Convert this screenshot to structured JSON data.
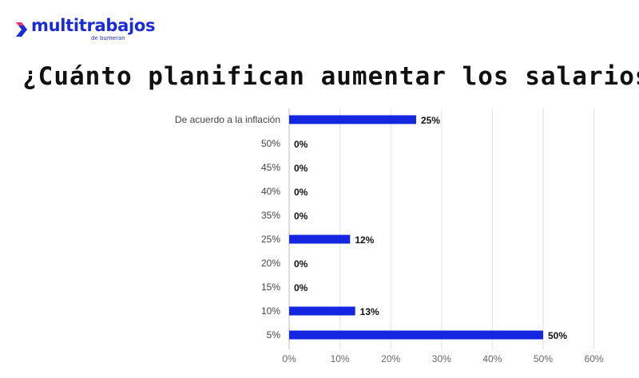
{
  "brand": {
    "name": "multitrabajos",
    "sub": "de bumeran",
    "color": "#1b2bd9"
  },
  "chart_data": {
    "type": "bar",
    "orientation": "horizontal",
    "title": "¿Cuánto planifican aumentar los salarios?",
    "categories": [
      "De acuerdo a la inflación",
      "50%",
      "45%",
      "40%",
      "35%",
      "25%",
      "20%",
      "15%",
      "10%",
      "5%"
    ],
    "values": [
      25,
      0,
      0,
      0,
      0,
      12,
      0,
      0,
      13,
      50
    ],
    "value_labels": [
      "25%",
      "0%",
      "0%",
      "0%",
      "0%",
      "12%",
      "0%",
      "0%",
      "13%",
      "50%"
    ],
    "xticks": [
      "0%",
      "10%",
      "20%",
      "30%",
      "40%",
      "50%",
      "60%"
    ],
    "xlim": [
      0,
      60
    ],
    "grid": true,
    "bar_color": "#1426e0"
  }
}
